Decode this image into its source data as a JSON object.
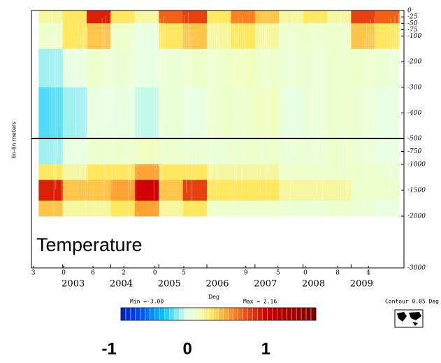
{
  "chart_data": {
    "type": "heatmap",
    "ylabel": "lin-lin meters",
    "annotation": "Temperature",
    "xlim": [
      2002.35,
      2010.1
    ],
    "xticks": [
      2003,
      2004,
      2005,
      2006,
      2007,
      2008,
      2009
    ],
    "xminor": [
      {
        "value": 2002.39,
        "label": "3"
      },
      {
        "value": 2003.02,
        "label": "0"
      },
      {
        "value": 2003.63,
        "label": "6"
      },
      {
        "value": 2004.27,
        "label": "2"
      },
      {
        "value": 2004.92,
        "label": "0"
      },
      {
        "value": 2005.52,
        "label": "5"
      },
      {
        "value": 2006.81,
        "label": "9"
      },
      {
        "value": 2007.48,
        "label": "5"
      },
      {
        "value": 2008.05,
        "label": "0"
      },
      {
        "value": 2008.72,
        "label": "8"
      },
      {
        "value": 2009.36,
        "label": "4"
      }
    ],
    "panels": [
      {
        "ylim": [
          -500,
          0
        ],
        "yticks": [
          0,
          -25,
          -50,
          -75,
          -100,
          -200,
          -300,
          -400,
          -500
        ]
      },
      {
        "ylim": [
          -3000,
          -500
        ],
        "yticks": [
          -750,
          -1000,
          -1500,
          -2000,
          -3000
        ]
      }
    ],
    "time_edges": [
      2002.5,
      2003,
      2003.5,
      2004,
      2004.5,
      2005,
      2005.5,
      2006,
      2006.5,
      2007,
      2007.5,
      2008,
      2008.5,
      2009,
      2009.5,
      2010
    ],
    "depth_edges": [
      0,
      -50,
      -150,
      -300,
      -500,
      -1000,
      -1300,
      -1700,
      -2000
    ],
    "values": [
      [
        0.2,
        0.3,
        0.9,
        0.3,
        0.2,
        0.7,
        0.8,
        0.3,
        0.6,
        0.4,
        0.2,
        0.3,
        0.2,
        0.8,
        0.7
      ],
      [
        0.1,
        0.3,
        0.4,
        0.1,
        0.0,
        0.3,
        0.4,
        0.2,
        0.3,
        0.2,
        0.1,
        0.1,
        0.1,
        0.4,
        0.3
      ],
      [
        -0.1,
        0.0,
        0.1,
        0.05,
        0.0,
        0.05,
        0.1,
        0.1,
        0.15,
        0.1,
        0.05,
        0.05,
        0.1,
        0.1,
        0.05
      ],
      [
        -0.2,
        -0.1,
        0.0,
        0.0,
        -0.05,
        0.05,
        0.0,
        0.1,
        0.1,
        0.15,
        0.0,
        0.05,
        0.1,
        0.05,
        0.0
      ],
      [
        -0.1,
        0.0,
        0.1,
        0.1,
        0.15,
        0.1,
        0.05,
        0.05,
        0.1,
        0.1,
        0.05,
        0.05,
        0.1,
        0.05,
        0.0
      ],
      [
        0.3,
        0.2,
        0.3,
        0.3,
        0.5,
        0.3,
        0.3,
        0.2,
        0.2,
        0.2,
        0.1,
        0.1,
        0.1,
        0.1,
        0.05
      ],
      [
        0.9,
        0.4,
        0.4,
        0.5,
        1.0,
        0.4,
        0.8,
        0.3,
        0.3,
        0.3,
        0.2,
        0.2,
        0.2,
        0.1,
        0.1
      ],
      [
        0.4,
        0.2,
        0.2,
        0.3,
        0.5,
        0.2,
        0.3,
        0.1,
        0.1,
        0.1,
        0.05,
        0.05,
        0.1,
        0.05,
        0.0
      ]
    ],
    "colorbar": {
      "lim": [
        -0.85,
        1.64
      ],
      "ticks": [
        -1,
        0,
        1
      ],
      "min_label": "Min =-3.00",
      "unit": "Deg",
      "max_label": "Max = 2.16"
    },
    "contour_label": "Contour 0.05 Deg"
  }
}
